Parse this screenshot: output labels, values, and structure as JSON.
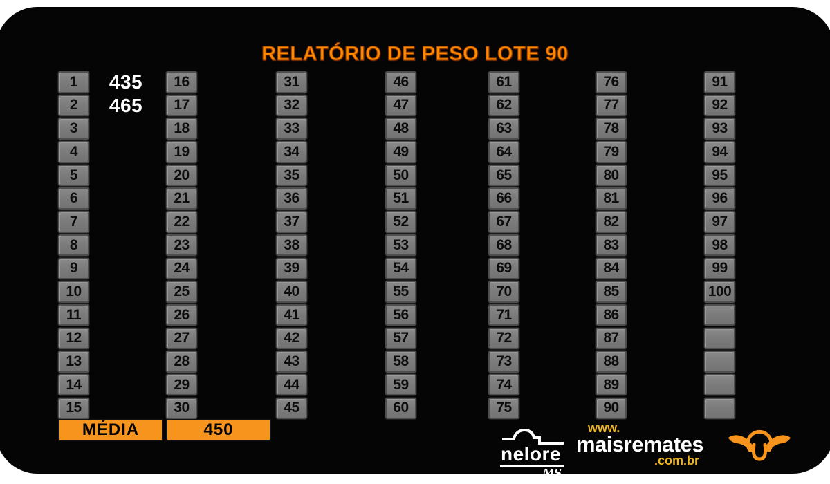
{
  "title": "RELATÓRIO DE PESO LOTE 90",
  "table": {
    "media_label": "MÉDIA",
    "media_value": "450",
    "weights": {
      "1": "435",
      "2": "465"
    },
    "columns": [
      [
        "1",
        "2",
        "3",
        "4",
        "5",
        "6",
        "7",
        "8",
        "9",
        "10",
        "11",
        "12",
        "13",
        "14",
        "15"
      ],
      [
        "16",
        "17",
        "18",
        "19",
        "20",
        "21",
        "22",
        "23",
        "24",
        "25",
        "26",
        "27",
        "28",
        "29",
        "30"
      ],
      [
        "31",
        "32",
        "33",
        "34",
        "35",
        "36",
        "37",
        "38",
        "39",
        "40",
        "41",
        "42",
        "43",
        "44",
        "45"
      ],
      [
        "46",
        "47",
        "48",
        "49",
        "50",
        "51",
        "52",
        "53",
        "54",
        "55",
        "56",
        "57",
        "58",
        "59",
        "60"
      ],
      [
        "61",
        "62",
        "63",
        "64",
        "65",
        "66",
        "67",
        "68",
        "69",
        "70",
        "71",
        "72",
        "73",
        "74",
        "75"
      ],
      [
        "76",
        "77",
        "78",
        "79",
        "80",
        "81",
        "82",
        "83",
        "84",
        "85",
        "86",
        "87",
        "88",
        "89",
        "90"
      ],
      [
        "91",
        "92",
        "93",
        "94",
        "95",
        "96",
        "97",
        "98",
        "99",
        "100",
        "",
        "",
        "",
        "",
        ""
      ]
    ]
  },
  "footer": {
    "nelore": {
      "name": "nelore",
      "region": "MS"
    },
    "maisremates": {
      "prefix": "www.",
      "name": "maisremates",
      "suffix": ".com.br"
    },
    "bull_icon": "bull-head-icon",
    "hump_icon": "zebu-hump-icon"
  },
  "colors": {
    "accent_orange": "#f7941d",
    "title_orange": "#ff8a00",
    "gold": "#f0b622",
    "cell_gray": "#7d7d7d",
    "panel_black": "#050505",
    "value_white": "#ffffff"
  }
}
